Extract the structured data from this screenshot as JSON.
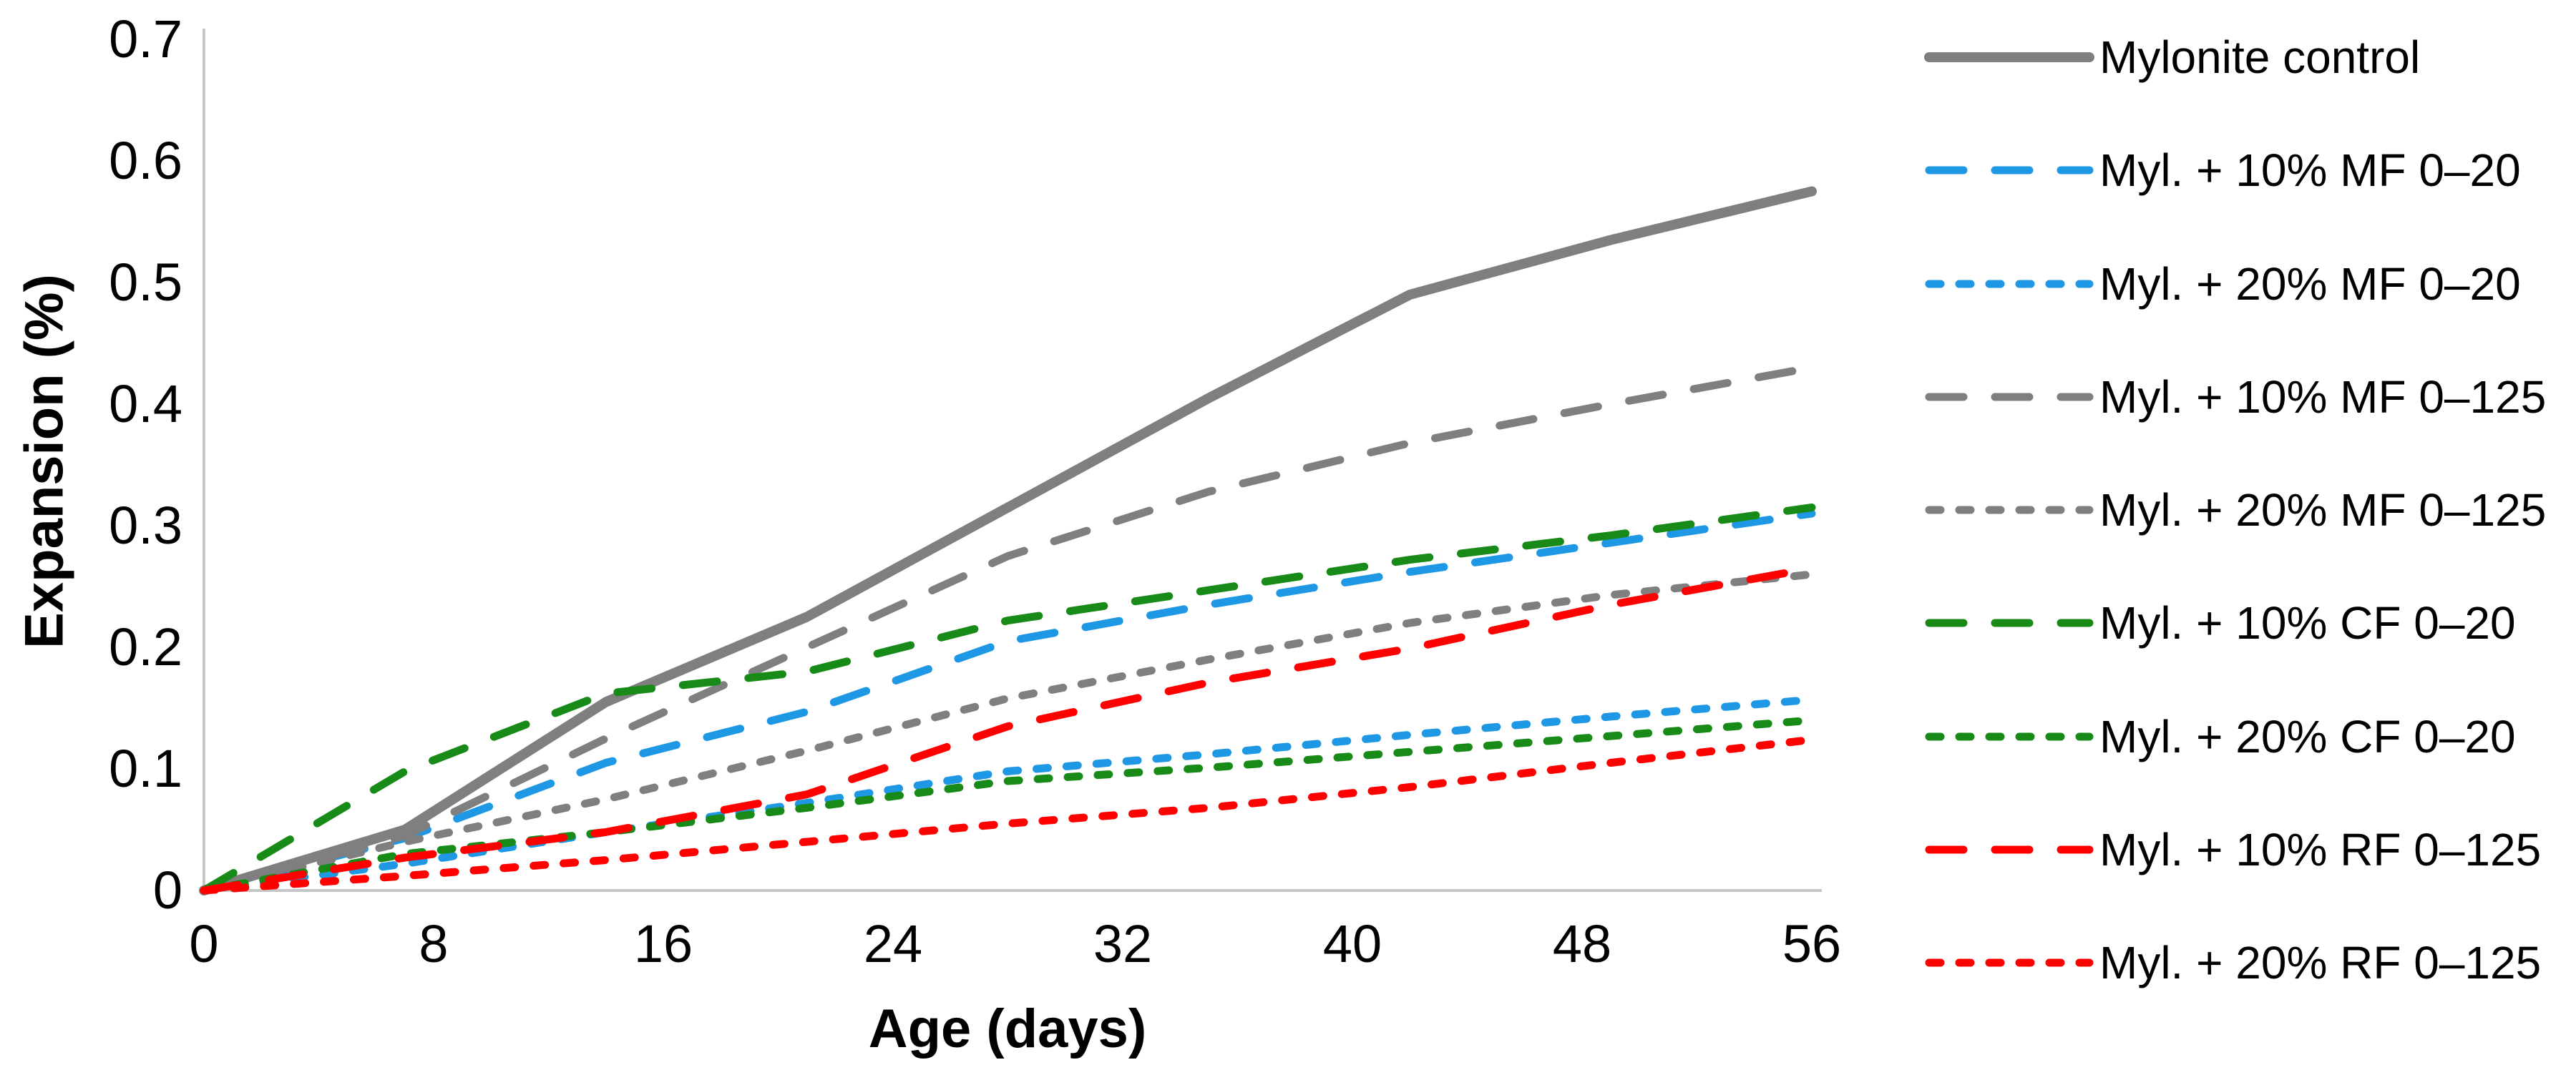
{
  "chart_data": {
    "type": "line",
    "title": "",
    "xlabel": "Age (days)",
    "ylabel": "Expansion (%)",
    "xlim": [
      0,
      56
    ],
    "ylim": [
      0,
      0.7
    ],
    "x_ticks": [
      "0",
      "8",
      "16",
      "24",
      "32",
      "40",
      "48",
      "56"
    ],
    "y_ticks": [
      "0",
      "0.1",
      "0.2",
      "0.3",
      "0.4",
      "0.5",
      "0.6",
      "0.7"
    ],
    "grid": "off",
    "legend_position": "right",
    "x": [
      0,
      7,
      14,
      21,
      28,
      35,
      42,
      49,
      56
    ],
    "series": [
      {
        "name": "Mylonite control",
        "color": "#7F7F7F",
        "dash": "solid",
        "width": 14,
        "values": [
          0,
          0.05,
          0.155,
          0.225,
          0.315,
          0.405,
          0.49,
          0.535,
          0.575
        ]
      },
      {
        "name": "Myl. + 10% MF 0–20",
        "color": "#1E98E4",
        "dash": "long",
        "width": 11,
        "values": [
          0,
          0.043,
          0.105,
          0.147,
          0.205,
          0.235,
          0.262,
          0.286,
          0.31
        ]
      },
      {
        "name": "Myl. + 20% MF 0–20",
        "color": "#1E98E4",
        "dash": "short",
        "width": 11,
        "values": [
          0,
          0.022,
          0.048,
          0.072,
          0.098,
          0.112,
          0.128,
          0.143,
          0.157
        ]
      },
      {
        "name": "Myl. + 10% MF 0–125",
        "color": "#7F7F7F",
        "dash": "long",
        "width": 11,
        "values": [
          0,
          0.045,
          0.125,
          0.2,
          0.275,
          0.328,
          0.368,
          0.4,
          0.43
        ]
      },
      {
        "name": "Myl. + 20% MF 0–125",
        "color": "#7F7F7F",
        "dash": "short",
        "width": 11,
        "values": [
          0,
          0.04,
          0.075,
          0.115,
          0.158,
          0.19,
          0.22,
          0.243,
          0.26
        ]
      },
      {
        "name": "Myl. + 10% CF 0–20",
        "color": "#178A17",
        "dash": "long",
        "width": 11,
        "values": [
          0,
          0.098,
          0.162,
          0.18,
          0.222,
          0.247,
          0.272,
          0.292,
          0.315
        ]
      },
      {
        "name": "Myl. + 20% CF 0–20",
        "color": "#178A17",
        "dash": "short",
        "width": 11,
        "values": [
          0,
          0.03,
          0.048,
          0.068,
          0.09,
          0.101,
          0.114,
          0.127,
          0.14
        ]
      },
      {
        "name": "Myl. + 10% RF 0–125",
        "color": "#FF0000",
        "dash": "long",
        "width": 11,
        "values": [
          0,
          0.027,
          0.048,
          0.079,
          0.135,
          0.171,
          0.199,
          0.235,
          0.265
        ]
      },
      {
        "name": "Myl. + 20% RF 0–125",
        "color": "#FF0000",
        "dash": "short",
        "width": 11,
        "values": [
          0,
          0.012,
          0.025,
          0.04,
          0.055,
          0.068,
          0.085,
          0.105,
          0.124
        ]
      }
    ]
  },
  "style": {
    "axis_line_color": "#C6C6C6",
    "text_color": "#000000",
    "background": "#FFFFFF"
  }
}
